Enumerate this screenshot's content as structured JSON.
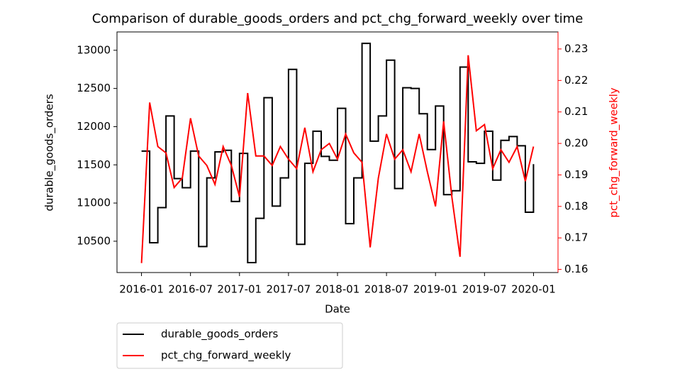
{
  "chart_data": {
    "type": "line",
    "title": "Comparison of durable_goods_orders and pct_chg_forward_weekly over time",
    "x_label": "Date",
    "y_label": "durable_goods_orders",
    "y2_label": "pct_chg_forward_weekly",
    "x": [
      "2016-01",
      "2016-02",
      "2016-03",
      "2016-04",
      "2016-05",
      "2016-06",
      "2016-07",
      "2016-08",
      "2016-09",
      "2016-10",
      "2016-11",
      "2016-12",
      "2017-01",
      "2017-02",
      "2017-03",
      "2017-04",
      "2017-05",
      "2017-06",
      "2017-07",
      "2017-08",
      "2017-09",
      "2017-10",
      "2017-11",
      "2017-12",
      "2018-01",
      "2018-02",
      "2018-03",
      "2018-04",
      "2018-05",
      "2018-06",
      "2018-07",
      "2018-08",
      "2018-09",
      "2018-10",
      "2018-11",
      "2018-12",
      "2019-01",
      "2019-02",
      "2019-03",
      "2019-04",
      "2019-05",
      "2019-06",
      "2019-07",
      "2019-08",
      "2019-09",
      "2019-10",
      "2019-11",
      "2019-12",
      "2020-01"
    ],
    "xlim": [
      "2015-10",
      "2020-04"
    ],
    "xticks": [
      "2016-01",
      "2016-07",
      "2017-01",
      "2017-07",
      "2018-01",
      "2018-07",
      "2019-01",
      "2019-07",
      "2020-01"
    ],
    "ylim": [
      10090,
      13240
    ],
    "yticks": [
      10500,
      11000,
      11500,
      12000,
      12500,
      13000
    ],
    "y2lim": [
      0.159,
      0.2354
    ],
    "y2ticks": [
      0.16,
      0.17,
      0.18,
      0.19,
      {
        "value": 0.2,
        "label": "0.20"
      },
      0.21,
      0.22,
      0.23
    ],
    "y2_color": "#ff0000",
    "legend": "below",
    "series": [
      {
        "name": "durable_goods_orders",
        "color": "#000000",
        "values": [
          11680,
          10480,
          10940,
          12140,
          11320,
          11200,
          11680,
          10430,
          11330,
          11670,
          11690,
          11020,
          11650,
          10220,
          10800,
          12380,
          10960,
          11330,
          12750,
          10460,
          11520,
          11940,
          11610,
          11560,
          12240,
          10730,
          11330,
          13090,
          11810,
          12140,
          12870,
          11190,
          12510,
          12500,
          12170,
          11700,
          12270,
          11110,
          11160,
          12780,
          11540,
          11520,
          11940,
          11300,
          11820,
          11870,
          11750,
          10880,
          11510
        ]
      },
      {
        "name": "pct_chg_forward_weekly",
        "color": "#ff0000",
        "axis": "y2",
        "values": [
          0.162,
          0.213,
          0.199,
          0.197,
          0.186,
          0.189,
          0.208,
          0.196,
          0.193,
          0.187,
          0.199,
          0.193,
          0.183,
          0.216,
          0.196,
          0.196,
          0.193,
          0.199,
          0.195,
          0.192,
          0.205,
          0.191,
          0.198,
          0.2,
          0.195,
          0.203,
          0.197,
          0.194,
          0.167,
          0.189,
          0.203,
          0.195,
          0.198,
          0.191,
          0.203,
          0.191,
          0.18,
          0.207,
          0.183,
          0.164,
          0.228,
          0.204,
          0.206,
          0.192,
          0.198,
          0.194,
          0.199,
          0.188,
          0.199
        ]
      }
    ]
  }
}
